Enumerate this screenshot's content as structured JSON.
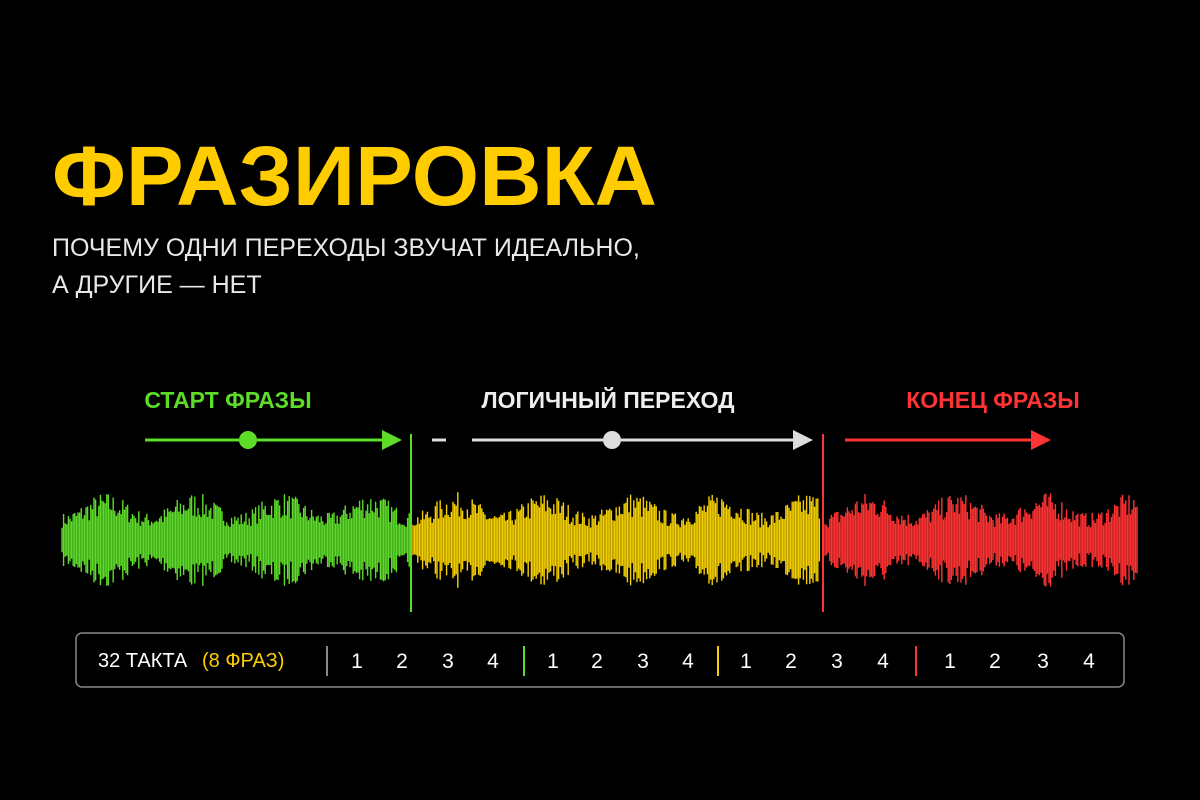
{
  "title": "ФРАЗИРОВКА",
  "subtitle": [
    "ПОЧЕМУ ОДНИ ПЕРЕХОДЫ ЗВУЧАТ ИДЕАЛЬНО,",
    "А ДРУГИЕ — НЕТ"
  ],
  "sections": [
    {
      "label": "СТАРТ ФРАЗЫ"
    },
    {
      "label": "ЛОГИЧНЫЙ ПЕРЕХОД"
    },
    {
      "label": "КОНЕЦ ФРАЗЫ"
    }
  ],
  "bar": {
    "count_label": "32 ТАКТА",
    "phrase_label": "(8 ФРАЗ)",
    "groups": [
      [
        1,
        2,
        3,
        4
      ],
      [
        1,
        2,
        3,
        4
      ],
      [
        1,
        2,
        3,
        4
      ],
      [
        1,
        2,
        3,
        4
      ]
    ]
  }
}
